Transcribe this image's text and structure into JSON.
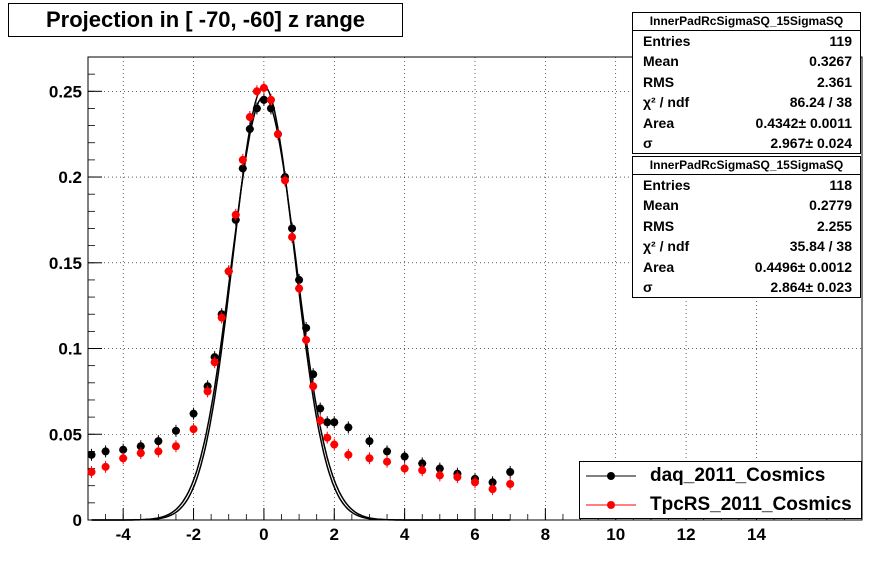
{
  "title": "Projection in [ -70, -60] z range",
  "stats_boxes": [
    {
      "name": "InnerPadRcSigmaSQ_15SigmaSQ",
      "rows": [
        [
          "Entries",
          "119"
        ],
        [
          "Mean",
          "0.3267"
        ],
        [
          "RMS",
          "2.361"
        ],
        [
          "χ² / ndf",
          "86.24 / 38"
        ],
        [
          "Area",
          "0.4342± 0.0011"
        ],
        [
          "σ",
          "2.967± 0.024"
        ]
      ]
    },
    {
      "name": "InnerPadRcSigmaSQ_15SigmaSQ",
      "rows": [
        [
          "Entries",
          "118"
        ],
        [
          "Mean",
          "0.2779"
        ],
        [
          "RMS",
          "2.255"
        ],
        [
          "χ² / ndf",
          "35.84 / 38"
        ],
        [
          "Area",
          "0.4496± 0.0012"
        ],
        [
          "σ",
          "2.864± 0.023"
        ]
      ]
    }
  ],
  "legend": [
    {
      "label": "daq_2011_Cosmics",
      "color": "#000000"
    },
    {
      "label": "TpcRS_2011_Cosmics",
      "color": "#ff0000"
    }
  ],
  "chart_data": {
    "type": "scatter",
    "xlim": [
      -5,
      17
    ],
    "ylim": [
      0,
      0.27
    ],
    "grid": true,
    "x_ticks": [
      "-4",
      "-2",
      "0",
      "2",
      "4",
      "6",
      "8",
      "10",
      "12",
      "14"
    ],
    "y_ticks": [
      "0",
      "0.05",
      "0.1",
      "0.15",
      "0.2",
      "0.25"
    ],
    "series": [
      {
        "name": "daq_2011_Cosmics",
        "color": "#000000",
        "fit": {
          "amp": 0.247,
          "mean": 0.0,
          "sigma": 0.92
        },
        "x": [
          -4.9,
          -4.5,
          -4.0,
          -3.5,
          -3.0,
          -2.5,
          -2.0,
          -1.6,
          -1.4,
          -1.2,
          -1.0,
          -0.8,
          -0.6,
          -0.4,
          -0.2,
          0.0,
          0.2,
          0.4,
          0.6,
          0.8,
          1.0,
          1.2,
          1.4,
          1.6,
          1.8,
          2.0,
          2.4,
          3.0,
          3.5,
          4.0,
          4.5,
          5.0,
          5.5,
          6.0,
          6.5,
          7.0
        ],
        "y": [
          0.038,
          0.04,
          0.041,
          0.043,
          0.046,
          0.052,
          0.062,
          0.078,
          0.095,
          0.12,
          0.145,
          0.175,
          0.205,
          0.228,
          0.24,
          0.245,
          0.24,
          0.225,
          0.2,
          0.17,
          0.14,
          0.112,
          0.085,
          0.065,
          0.057,
          0.057,
          0.054,
          0.046,
          0.04,
          0.037,
          0.033,
          0.03,
          0.027,
          0.024,
          0.022,
          0.028
        ]
      },
      {
        "name": "TpcRS_2011_Cosmics",
        "color": "#ff0000",
        "fit": {
          "amp": 0.253,
          "mean": 0.0,
          "sigma": 0.88
        },
        "x": [
          -4.9,
          -4.5,
          -4.0,
          -3.5,
          -3.0,
          -2.5,
          -2.0,
          -1.6,
          -1.4,
          -1.2,
          -1.0,
          -0.8,
          -0.6,
          -0.4,
          -0.2,
          0.0,
          0.2,
          0.4,
          0.6,
          0.8,
          1.0,
          1.2,
          1.4,
          1.6,
          1.8,
          2.0,
          2.4,
          3.0,
          3.5,
          4.0,
          4.5,
          5.0,
          5.5,
          6.0,
          6.5,
          7.0
        ],
        "y": [
          0.028,
          0.031,
          0.036,
          0.039,
          0.04,
          0.043,
          0.053,
          0.075,
          0.092,
          0.118,
          0.145,
          0.178,
          0.21,
          0.235,
          0.25,
          0.252,
          0.245,
          0.225,
          0.198,
          0.165,
          0.135,
          0.105,
          0.078,
          0.058,
          0.048,
          0.044,
          0.038,
          0.036,
          0.034,
          0.03,
          0.029,
          0.026,
          0.025,
          0.022,
          0.018,
          0.021
        ]
      }
    ]
  }
}
